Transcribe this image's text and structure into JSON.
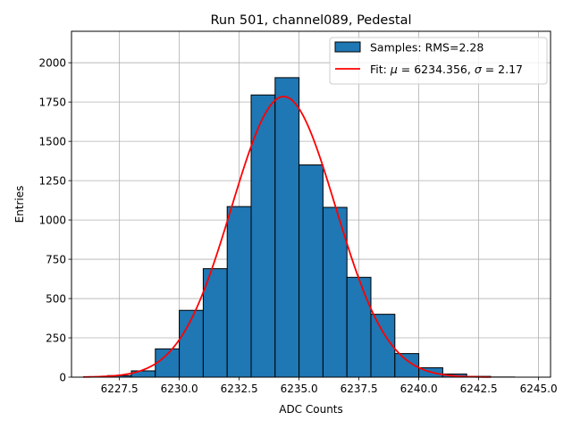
{
  "chart_data": {
    "type": "bar",
    "title": "Run 501, channel089, Pedestal",
    "xlabel": "ADC Counts",
    "ylabel": "Entries",
    "xlim": [
      6225.5,
      6245.5
    ],
    "ylim": [
      0,
      2200
    ],
    "xticks": [
      6227.5,
      6230.0,
      6232.5,
      6235.0,
      6237.5,
      6240.0,
      6242.5,
      6245.0
    ],
    "xtick_labels": [
      "6227.5",
      "6230.0",
      "6232.5",
      "6235.0",
      "6237.5",
      "6240.0",
      "6242.5",
      "6245.0"
    ],
    "yticks": [
      0,
      250,
      500,
      750,
      1000,
      1250,
      1500,
      1750,
      2000
    ],
    "ytick_labels": [
      "0",
      "250",
      "500",
      "750",
      "1000",
      "1250",
      "1500",
      "1750",
      "2000"
    ],
    "grid": true,
    "legend_position": "top-right",
    "histogram": {
      "name": "Samples: RMS=2.28",
      "color": "#1f77b4",
      "edge_color": "#000000",
      "bin_edges": [
        6226,
        6227,
        6228,
        6229,
        6230,
        6231,
        6232,
        6233,
        6234,
        6235,
        6236,
        6237,
        6238,
        6239,
        6240,
        6241,
        6242,
        6243,
        6244,
        6245
      ],
      "counts": [
        2,
        10,
        40,
        180,
        425,
        690,
        1085,
        1795,
        1905,
        1350,
        1080,
        635,
        400,
        150,
        60,
        20,
        5,
        1,
        0
      ]
    },
    "fit": {
      "name": "Fit: μ = 6234.356, σ = 2.17",
      "name_prefix": "Fit: ",
      "mu_symbol": "μ",
      "mu_value": " = 6234.356, ",
      "sigma_symbol": "σ",
      "sigma_value": " = 2.17",
      "color": "#ff0000",
      "mu": 6234.356,
      "sigma": 2.17,
      "amplitude": 1785,
      "x_range": [
        6226,
        6243
      ]
    }
  }
}
